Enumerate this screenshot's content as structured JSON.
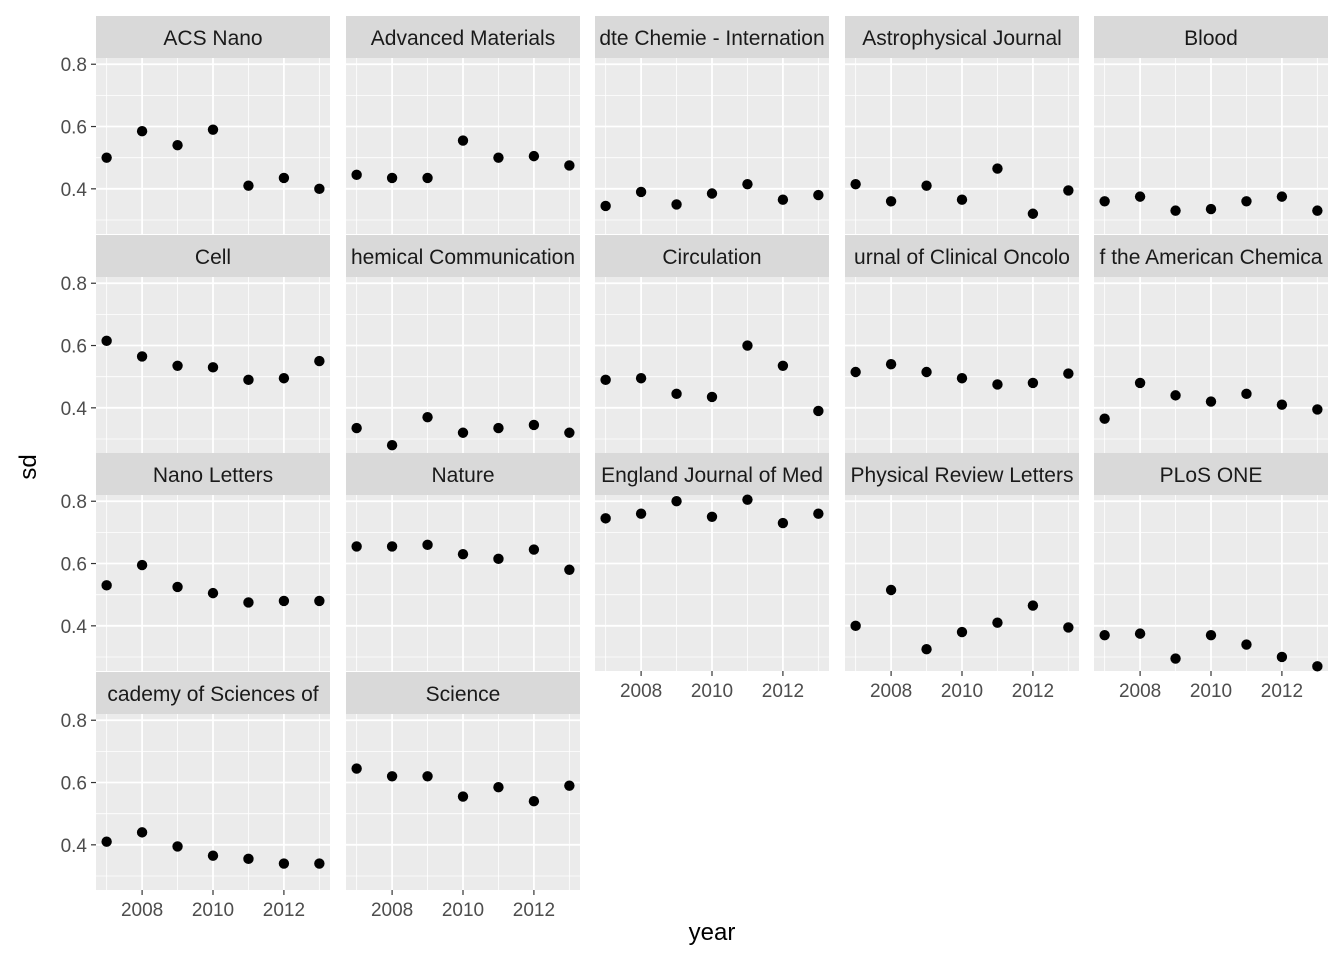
{
  "chart_data": {
    "type": "scatter",
    "facet_wrap": true,
    "xlabel": "year",
    "ylabel": "sd",
    "xlim": [
      2006.7,
      2013.3
    ],
    "ylim": [
      0.255,
      0.82
    ],
    "xticks": [
      2008,
      2010,
      2012
    ],
    "yticks": [
      0.4,
      0.6,
      0.8
    ],
    "x_tick_labels": [
      "2008",
      "2010",
      "2012"
    ],
    "y_tick_labels": [
      "0.4",
      "0.6",
      "0.8"
    ],
    "grid": true,
    "x": [
      2007,
      2008,
      2009,
      2010,
      2011,
      2012,
      2013
    ],
    "panels": [
      {
        "strip": "ACS Nano",
        "values": [
          0.5,
          0.585,
          0.54,
          0.59,
          0.41,
          0.435,
          0.4
        ]
      },
      {
        "strip": "Advanced Materials",
        "values": [
          0.445,
          0.435,
          0.435,
          0.555,
          0.5,
          0.505,
          0.475
        ]
      },
      {
        "strip": "dte Chemie - Internation",
        "values": [
          0.345,
          0.39,
          0.35,
          0.385,
          0.415,
          0.365,
          0.38
        ]
      },
      {
        "strip": "Astrophysical Journal",
        "values": [
          0.415,
          0.36,
          0.41,
          0.365,
          0.465,
          0.32,
          0.395
        ]
      },
      {
        "strip": "Blood",
        "values": [
          0.36,
          0.375,
          0.33,
          0.335,
          0.36,
          0.375,
          0.33
        ]
      },
      {
        "strip": "Cell",
        "values": [
          0.615,
          0.565,
          0.535,
          0.53,
          0.49,
          0.495,
          0.55
        ]
      },
      {
        "strip": "hemical Communication",
        "values": [
          0.335,
          0.28,
          0.37,
          0.32,
          0.335,
          0.345,
          0.32
        ]
      },
      {
        "strip": "Circulation",
        "values": [
          0.49,
          0.495,
          0.445,
          0.435,
          0.6,
          0.535,
          0.39
        ]
      },
      {
        "strip": "urnal of Clinical Oncolo",
        "values": [
          0.515,
          0.54,
          0.515,
          0.495,
          0.475,
          0.48,
          0.51
        ]
      },
      {
        "strip": "f the American Chemica",
        "values": [
          0.365,
          0.48,
          0.44,
          0.42,
          0.445,
          0.41,
          0.395
        ]
      },
      {
        "strip": "Nano Letters",
        "values": [
          0.53,
          0.595,
          0.525,
          0.505,
          0.475,
          0.48,
          0.48
        ]
      },
      {
        "strip": "Nature",
        "values": [
          0.655,
          0.655,
          0.66,
          0.63,
          0.615,
          0.645,
          0.58
        ]
      },
      {
        "strip": "England Journal of Med",
        "values": [
          0.745,
          0.76,
          0.8,
          0.75,
          0.805,
          0.73,
          0.76
        ]
      },
      {
        "strip": "Physical Review Letters",
        "values": [
          0.4,
          0.515,
          0.325,
          0.38,
          0.41,
          0.465,
          0.395
        ]
      },
      {
        "strip": "PLoS ONE",
        "values": [
          0.37,
          0.375,
          0.295,
          0.37,
          0.34,
          0.3,
          0.27
        ]
      },
      {
        "strip": "cademy of Sciences of",
        "values": [
          0.41,
          0.44,
          0.395,
          0.365,
          0.355,
          0.34,
          0.34
        ]
      },
      {
        "strip": "Science",
        "values": [
          0.645,
          0.62,
          0.62,
          0.555,
          0.585,
          0.54,
          0.59
        ]
      }
    ]
  },
  "colors": {
    "panel_bg": "#ebebeb",
    "strip_bg": "#d9d9d9",
    "grid_major": "#ffffff",
    "point": "#000000",
    "tick": "#333333"
  }
}
